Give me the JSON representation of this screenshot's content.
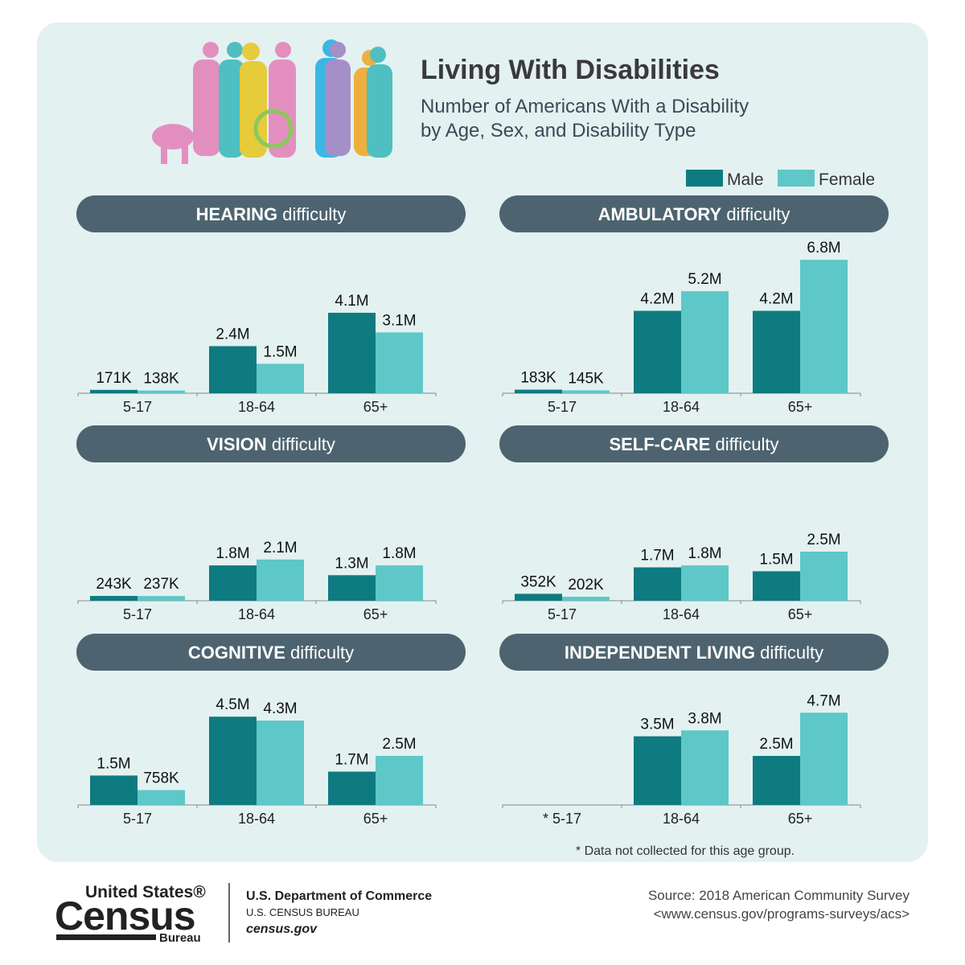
{
  "header": {
    "title": "Living With Disabilities",
    "subtitle_lines": [
      "Number of Americans With a Disability",
      "by Age, Sex, and Disability Type"
    ]
  },
  "footer": {
    "logo_top": "United States®",
    "logo_main": "Census",
    "logo_bottom": "Bureau",
    "department": "U.S. Department of Commerce",
    "bureau": "U.S. CENSUS BUREAU",
    "website": "census.gov",
    "source": "Source: 2018 American Community Survey",
    "source_url": "<www.census.gov/programs-surveys/acs>"
  },
  "chart_data": [
    {
      "type": "bar",
      "title": {
        "strong": "HEARING",
        "rest": "difficulty"
      },
      "categories": [
        "5-17",
        "18-64",
        "65+"
      ],
      "series": [
        {
          "name": "Male",
          "color": "#0e7b80",
          "values": [
            171000,
            2400000,
            4100000
          ],
          "value_labels": [
            "171K",
            "2.4M",
            "4.1M"
          ]
        },
        {
          "name": "Female",
          "color": "#5ec7c7",
          "values": [
            138000,
            1500000,
            3100000
          ],
          "value_labels": [
            "138K",
            "1.5M",
            "3.1M"
          ]
        }
      ]
    },
    {
      "type": "bar",
      "title": {
        "strong": "AMBULATORY",
        "rest": "difficulty"
      },
      "categories": [
        "5-17",
        "18-64",
        "65+"
      ],
      "series": [
        {
          "name": "Male",
          "color": "#0e7b80",
          "values": [
            183000,
            4200000,
            4200000
          ],
          "value_labels": [
            "183K",
            "4.2M",
            "4.2M"
          ]
        },
        {
          "name": "Female",
          "color": "#5ec7c7",
          "values": [
            145000,
            5200000,
            6800000
          ],
          "value_labels": [
            "145K",
            "5.2M",
            "6.8M"
          ]
        }
      ]
    },
    {
      "type": "bar",
      "title": {
        "strong": "VISION",
        "rest": "difficulty"
      },
      "categories": [
        "5-17",
        "18-64",
        "65+"
      ],
      "series": [
        {
          "name": "Male",
          "color": "#0e7b80",
          "values": [
            243000,
            1800000,
            1300000
          ],
          "value_labels": [
            "243K",
            "1.8M",
            "1.3M"
          ]
        },
        {
          "name": "Female",
          "color": "#5ec7c7",
          "values": [
            237000,
            2100000,
            1800000
          ],
          "value_labels": [
            "237K",
            "2.1M",
            "1.8M"
          ]
        }
      ]
    },
    {
      "type": "bar",
      "title": {
        "strong": "SELF-CARE",
        "rest": "difficulty"
      },
      "categories": [
        "5-17",
        "18-64",
        "65+"
      ],
      "series": [
        {
          "name": "Male",
          "color": "#0e7b80",
          "values": [
            352000,
            1700000,
            1500000
          ],
          "value_labels": [
            "352K",
            "1.7M",
            "1.5M"
          ]
        },
        {
          "name": "Female",
          "color": "#5ec7c7",
          "values": [
            202000,
            1800000,
            2500000
          ],
          "value_labels": [
            "202K",
            "1.8M",
            "2.5M"
          ]
        }
      ]
    },
    {
      "type": "bar",
      "title": {
        "strong": "COGNITIVE",
        "rest": "difficulty"
      },
      "categories": [
        "5-17",
        "18-64",
        "65+"
      ],
      "series": [
        {
          "name": "Male",
          "color": "#0e7b80",
          "values": [
            1500000,
            4500000,
            1700000
          ],
          "value_labels": [
            "1.5M",
            "4.5M",
            "1.7M"
          ]
        },
        {
          "name": "Female",
          "color": "#5ec7c7",
          "values": [
            758000,
            4300000,
            2500000
          ],
          "value_labels": [
            "758K",
            "4.3M",
            "2.5M"
          ]
        }
      ]
    },
    {
      "type": "bar",
      "title": {
        "strong": "INDEPENDENT LIVING",
        "rest": "difficulty"
      },
      "categories": [
        "* 5-17",
        "18-64",
        "65+"
      ],
      "series": [
        {
          "name": "Male",
          "color": "#0e7b80",
          "values": [
            null,
            3500000,
            2500000
          ],
          "value_labels": [
            null,
            "3.5M",
            "2.5M"
          ]
        },
        {
          "name": "Female",
          "color": "#5ec7c7",
          "values": [
            null,
            3800000,
            4700000
          ],
          "value_labels": [
            null,
            "3.8M",
            "4.7M"
          ]
        }
      ],
      "note": "* Data not collected for this age group."
    }
  ]
}
